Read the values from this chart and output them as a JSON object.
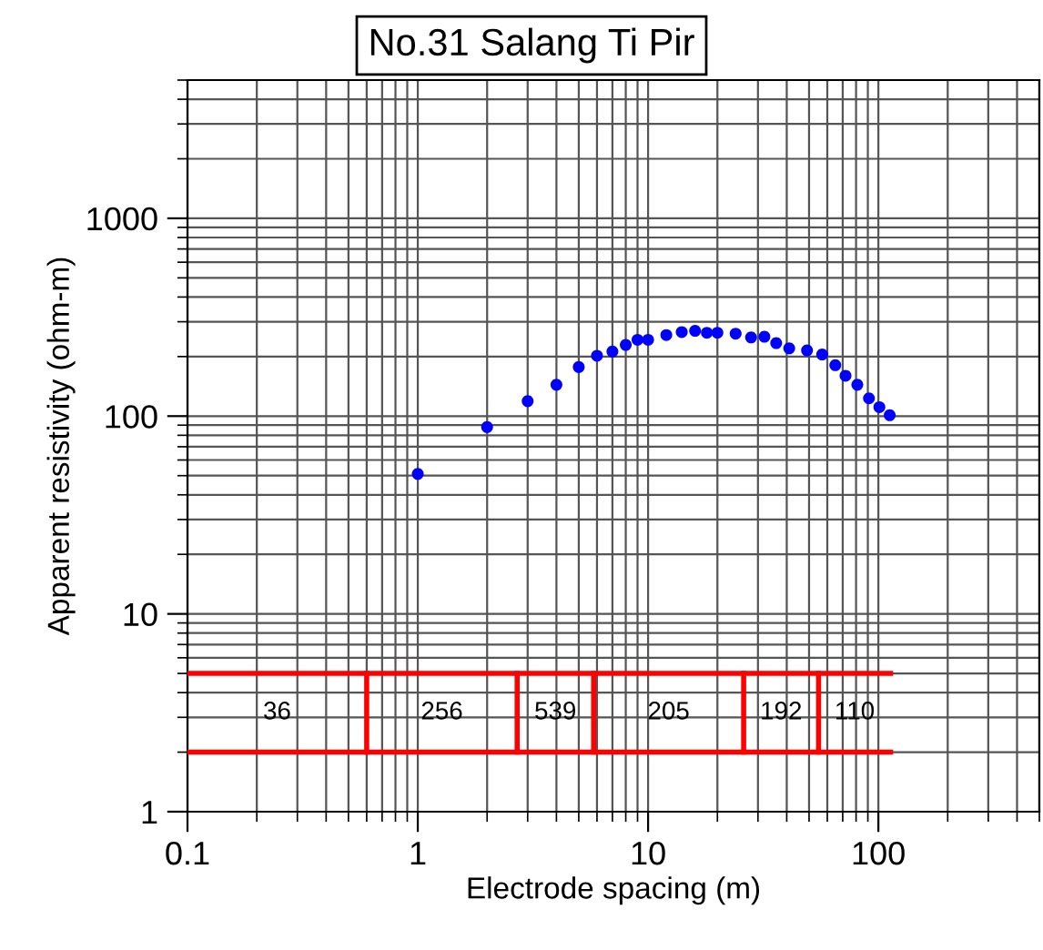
{
  "chart_data": {
    "type": "scatter",
    "title": "No.31 Salang Ti Pir",
    "xlabel": "Electrode spacing (m)",
    "ylabel": "Apparent resistivity (ohm-m)",
    "log": "xy",
    "grid": true,
    "marker": "circle",
    "xlim": [
      0.1,
      500
    ],
    "ylim": [
      1,
      5000
    ],
    "xticks": [
      0.1,
      1,
      10,
      100
    ],
    "yticks": [
      1,
      10,
      100,
      1000
    ],
    "series": [
      {
        "color": "#0000ff",
        "x": [
          1,
          2,
          3,
          4,
          5,
          6,
          7,
          8,
          9,
          10,
          12,
          14,
          16,
          18,
          20,
          24,
          28,
          32,
          36,
          41,
          49,
          57,
          65,
          72,
          81,
          91,
          101,
          112
        ],
        "values": [
          51,
          88,
          119,
          144,
          177,
          202,
          212,
          229,
          243,
          243,
          257,
          266,
          270,
          264,
          264,
          261,
          250,
          252,
          234,
          220,
          215,
          205,
          181,
          160,
          144,
          123,
          111,
          101
        ]
      },
      {
        "type": "line",
        "color": "#ff0000",
        "marker": "none",
        "x": [
          0.1,
          113
        ],
        "values": [
          5,
          5
        ]
      },
      {
        "type": "line",
        "color": "#ff0000",
        "marker": "none",
        "x": [
          0.1,
          113
        ],
        "values": [
          2,
          2
        ]
      },
      {
        "type": "line",
        "color": "#ff0000",
        "marker": "none",
        "x": [
          0.6,
          0.6
        ],
        "values": [
          2,
          5
        ]
      },
      {
        "type": "line",
        "color": "#ff0000",
        "marker": "none",
        "x": [
          2.7,
          2.7
        ],
        "values": [
          2,
          5
        ]
      },
      {
        "type": "line",
        "color": "#ff0000",
        "marker": "none",
        "x": [
          5.8,
          5.8
        ],
        "values": [
          2,
          5
        ]
      },
      {
        "type": "line",
        "color": "#ff0000",
        "marker": "none",
        "x": [
          26,
          26
        ],
        "values": [
          2,
          5
        ]
      },
      {
        "type": "line",
        "color": "#ff0000",
        "marker": "none",
        "x": [
          55,
          55
        ],
        "values": [
          2,
          5
        ]
      }
    ],
    "annotations": [
      "36",
      "256",
      "539",
      "205",
      "192",
      "110"
    ]
  }
}
